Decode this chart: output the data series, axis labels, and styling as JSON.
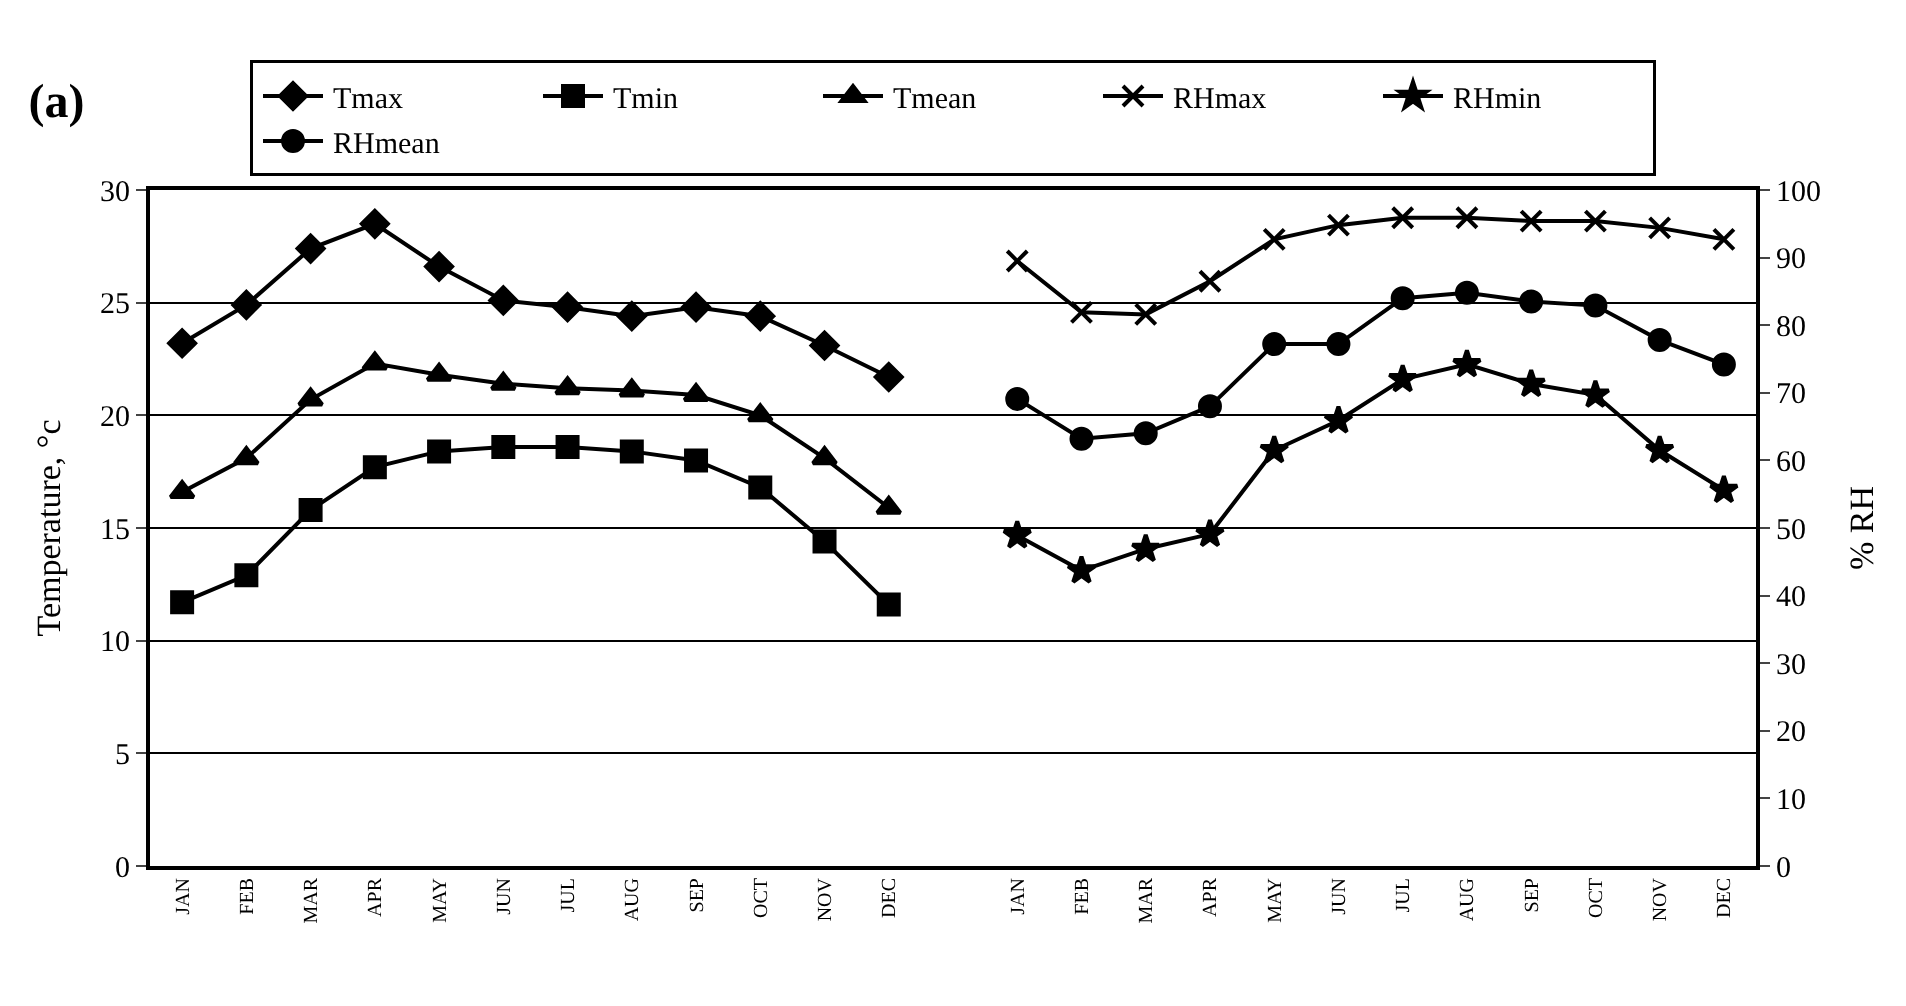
{
  "chart_data": {
    "type": "line",
    "title": "(a)",
    "ylabel": "Temperature, °c",
    "y2label": "% RH",
    "categories": [
      "JAN",
      "FEB",
      "MAR",
      "APR",
      "MAY",
      "JUN",
      "JUL",
      "AUG",
      "SEP",
      "OCT",
      "NOV",
      "DEC",
      null,
      "JAN",
      "FEB",
      "MAR",
      "APR",
      "MAY",
      "JUN",
      "JUL",
      "AUG",
      "SEP",
      "OCT",
      "NOV",
      "DEC"
    ],
    "series": [
      {
        "name": "Tmax",
        "color": "#000000",
        "marker": "diamond",
        "values": [
          23.2,
          24.9,
          27.4,
          28.5,
          26.6,
          25.1,
          24.8,
          24.4,
          24.8,
          24.4,
          23.1,
          21.7,
          null,
          null,
          null,
          null,
          null,
          null,
          null,
          null,
          null,
          null,
          null,
          null,
          null
        ]
      },
      {
        "name": "Tmin",
        "color": "#000000",
        "marker": "square",
        "values": [
          11.7,
          12.9,
          15.8,
          17.7,
          18.4,
          18.6,
          18.6,
          18.4,
          18.0,
          16.8,
          14.4,
          11.6,
          null,
          null,
          null,
          null,
          null,
          null,
          null,
          null,
          null,
          null,
          null,
          null,
          null
        ]
      },
      {
        "name": "Tmean",
        "color": "#000000",
        "marker": "triangle",
        "values": [
          16.6,
          18.1,
          20.7,
          22.3,
          21.8,
          21.4,
          21.2,
          21.1,
          20.9,
          20.0,
          18.1,
          15.9,
          null,
          null,
          null,
          null,
          null,
          null,
          null,
          null,
          null,
          null,
          null,
          null,
          null
        ]
      },
      {
        "name": "RHmax",
        "color": "#000000",
        "marker": "cross",
        "axis": "y2",
        "values": [
          null,
          null,
          null,
          null,
          null,
          null,
          null,
          null,
          null,
          null,
          null,
          null,
          null,
          89.5,
          81.9,
          81.6,
          86.5,
          92.7,
          94.8,
          95.9,
          95.9,
          95.4,
          95.4,
          94.4,
          92.7
        ]
      },
      {
        "name": "RHmin",
        "color": "#000000",
        "marker": "star",
        "axis": "y2",
        "values": [
          null,
          null,
          null,
          null,
          null,
          null,
          null,
          null,
          null,
          null,
          null,
          null,
          null,
          48.9,
          43.7,
          46.9,
          49.1,
          61.5,
          65.9,
          72.0,
          74.2,
          71.3,
          69.7,
          61.5,
          55.6
        ]
      },
      {
        "name": "RHmean",
        "color": "#000000",
        "marker": "circle",
        "axis": "y2",
        "values": [
          null,
          null,
          null,
          null,
          null,
          null,
          null,
          null,
          null,
          null,
          null,
          null,
          null,
          69.1,
          63.2,
          64.0,
          68.0,
          77.2,
          77.2,
          84.0,
          84.8,
          83.5,
          82.9,
          77.8,
          74.2
        ]
      }
    ],
    "ylim": [
      0,
      30
    ],
    "yticks": [
      0,
      5,
      10,
      15,
      20,
      25,
      30
    ],
    "y2lim": [
      0,
      100
    ],
    "y2ticks": [
      0,
      10,
      20,
      30,
      40,
      50,
      60,
      70,
      80,
      90,
      100
    ],
    "grid": "y",
    "legend": "top",
    "line_style": "solid"
  }
}
